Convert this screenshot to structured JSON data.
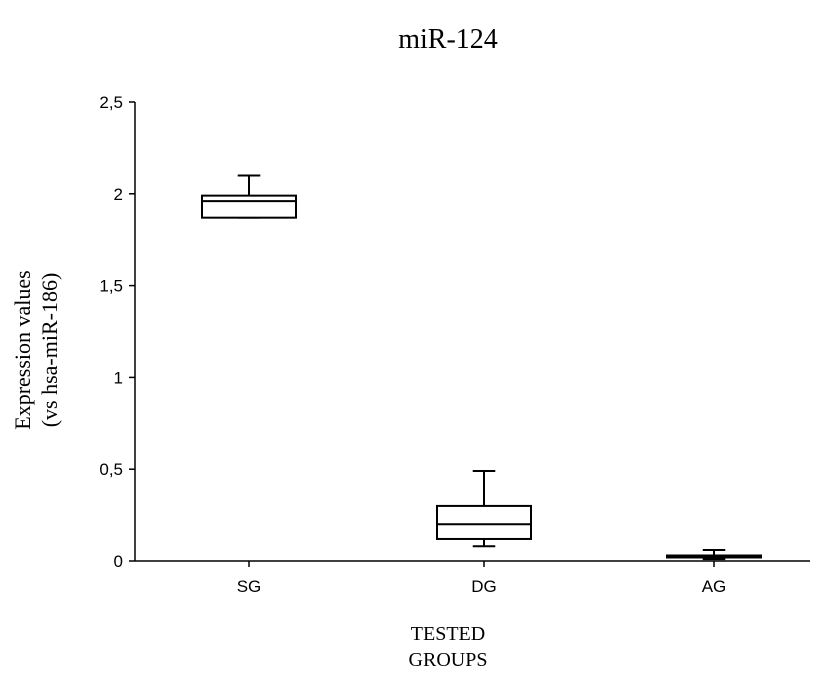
{
  "chart_data": {
    "type": "box",
    "title": "miR-124",
    "ylabel_line1": "Expression values",
    "ylabel_line2": "(vs hsa-miR-186)",
    "xlabel_line1": "TESTED",
    "xlabel_line2": "GROUPS",
    "ylim": [
      0,
      2.5
    ],
    "yticks": [
      {
        "value": 0,
        "label": "0"
      },
      {
        "value": 0.5,
        "label": "0,5"
      },
      {
        "value": 1,
        "label": "1"
      },
      {
        "value": 1.5,
        "label": "1,5"
      },
      {
        "value": 2,
        "label": "2"
      },
      {
        "value": 2.5,
        "label": "2,5"
      }
    ],
    "categories": [
      "SG",
      "DG",
      "AG"
    ],
    "boxes": [
      {
        "category": "SG",
        "whisker_low": 1.87,
        "q1": 1.87,
        "median": 1.96,
        "q3": 1.99,
        "whisker_high": 2.1
      },
      {
        "category": "DG",
        "whisker_low": 0.08,
        "q1": 0.12,
        "median": 0.2,
        "q3": 0.3,
        "whisker_high": 0.49
      },
      {
        "category": "AG",
        "whisker_low": 0.01,
        "q1": 0.02,
        "median": 0.025,
        "q3": 0.03,
        "whisker_high": 0.06
      }
    ],
    "grid": false,
    "legend": "none"
  }
}
